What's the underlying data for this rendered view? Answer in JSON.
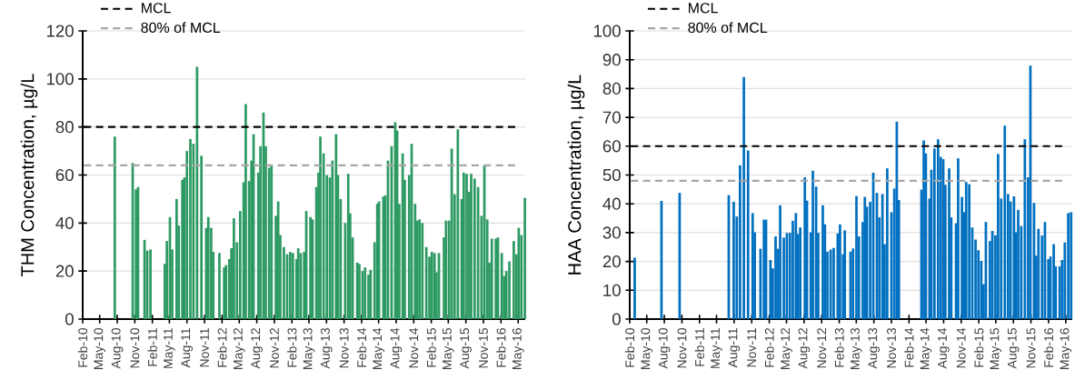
{
  "chart_data": [
    {
      "type": "bar",
      "ylabel": "THM Concentration, µg/L",
      "color": "#2e9a63",
      "grid": "y",
      "legend": "top left",
      "xlim": [
        "2010-02-01",
        "2016-06-07"
      ],
      "ylim": [
        0,
        120
      ],
      "yticks": [
        0,
        20,
        40,
        60,
        80,
        100,
        120
      ],
      "xticks": [
        {
          "value": "2010-02",
          "label": "Feb-10"
        },
        {
          "value": "2010-05",
          "label": "May-10"
        },
        {
          "value": "2010-08",
          "label": "Aug-10"
        },
        {
          "value": "2010-11",
          "label": "Nov-10"
        },
        {
          "value": "2011-02",
          "label": "Feb-11"
        },
        {
          "value": "2011-05",
          "label": "May-11"
        },
        {
          "value": "2011-08",
          "label": "Aug-11"
        },
        {
          "value": "2011-11",
          "label": "Nov-11"
        },
        {
          "value": "2012-02",
          "label": "Feb-12"
        },
        {
          "value": "2012-05",
          "label": "May-12"
        },
        {
          "value": "2012-08",
          "label": "Aug-12"
        },
        {
          "value": "2012-11",
          "label": "Nov-12"
        },
        {
          "value": "2013-02",
          "label": "Feb-13"
        },
        {
          "value": "2013-05",
          "label": "May-13"
        },
        {
          "value": "2013-08",
          "label": "Aug-13"
        },
        {
          "value": "2013-11",
          "label": "Nov-13"
        },
        {
          "value": "2014-02",
          "label": "Feb-14"
        },
        {
          "value": "2014-05",
          "label": "May-14"
        },
        {
          "value": "2014-08",
          "label": "Aug-14"
        },
        {
          "value": "2014-11",
          "label": "Nov-14"
        },
        {
          "value": "2015-02",
          "label": "Feb-15"
        },
        {
          "value": "2015-05",
          "label": "May-15"
        },
        {
          "value": "2015-08",
          "label": "Aug-15"
        },
        {
          "value": "2015-11",
          "label": "Nov-15"
        },
        {
          "value": "2016-02",
          "label": "Feb-16"
        },
        {
          "value": "2016-05",
          "label": "May-16"
        }
      ],
      "ref_lines": [
        {
          "axis": "y",
          "value": 80,
          "label": "MCL",
          "color": "#000000",
          "line_style": "dashed"
        },
        {
          "axis": "y",
          "value": 64,
          "label": "80% of MCL",
          "color": "#a6a6a6",
          "line_style": "dashed"
        }
      ],
      "x": [
        "2010-07-19",
        "2010-10-21",
        "2010-11-07",
        "2010-11-18",
        "2010-12-22",
        "2011-01-05",
        "2011-01-22",
        "2011-04-07",
        "2011-04-18",
        "2011-05-04",
        "2011-05-16",
        "2011-06-08",
        "2011-06-19",
        "2011-07-08",
        "2011-07-19",
        "2011-08-01",
        "2011-08-19",
        "2011-09-04",
        "2011-09-23",
        "2011-10-16",
        "2011-11-10",
        "2011-11-21",
        "2011-12-06",
        "2011-12-17",
        "2012-01-18",
        "2012-02-12",
        "2012-02-22",
        "2012-03-10",
        "2012-03-21",
        "2012-04-03",
        "2012-04-19",
        "2012-05-06",
        "2012-05-24",
        "2012-06-04",
        "2012-06-22",
        "2012-07-04",
        "2012-07-15",
        "2012-08-09",
        "2012-08-20",
        "2012-09-05",
        "2012-09-17",
        "2012-10-05",
        "2012-10-17",
        "2012-11-09",
        "2012-11-21",
        "2012-12-02",
        "2012-12-21",
        "2013-01-07",
        "2013-01-23",
        "2013-02-06",
        "2013-02-25",
        "2013-03-06",
        "2013-03-19",
        "2013-04-06",
        "2013-04-17",
        "2013-05-09",
        "2013-05-20",
        "2013-06-09",
        "2013-06-20",
        "2013-06-30",
        "2013-07-17",
        "2013-08-03",
        "2013-08-19",
        "2013-09-01",
        "2013-09-20",
        "2013-09-30",
        "2013-10-14",
        "2013-11-07",
        "2013-11-23",
        "2013-12-03",
        "2013-12-16",
        "2014-01-09",
        "2014-01-20",
        "2014-02-06",
        "2014-02-19",
        "2014-03-09",
        "2014-03-20",
        "2014-04-10",
        "2014-04-24",
        "2014-05-03",
        "2014-05-26",
        "2014-06-05",
        "2014-06-19",
        "2014-07-08",
        "2014-07-27",
        "2014-08-06",
        "2014-08-17",
        "2014-09-04",
        "2014-09-15",
        "2014-10-08",
        "2014-10-21",
        "2014-11-08",
        "2014-11-19",
        "2014-12-01",
        "2014-12-16",
        "2015-01-06",
        "2015-01-22",
        "2015-02-04",
        "2015-02-18",
        "2015-02-28",
        "2015-03-13",
        "2015-04-08",
        "2015-04-19",
        "2015-05-05",
        "2015-05-19",
        "2015-06-03",
        "2015-06-20",
        "2015-07-10",
        "2015-07-21",
        "2015-08-05",
        "2015-08-18",
        "2015-08-29",
        "2015-09-16",
        "2015-10-04",
        "2015-10-22",
        "2015-11-06",
        "2015-11-21",
        "2015-12-02",
        "2015-12-15",
        "2016-01-05",
        "2016-01-16",
        "2016-02-05",
        "2016-02-17",
        "2016-02-29",
        "2016-03-16",
        "2016-04-08",
        "2016-04-22",
        "2016-05-04",
        "2016-05-18",
        "2016-06-05"
      ],
      "values": [
        76,
        65,
        54,
        55,
        33,
        28.5,
        29,
        23,
        32.5,
        42.5,
        29,
        50,
        39,
        58,
        59,
        70,
        75,
        73,
        105,
        68,
        38,
        42.5,
        38,
        28,
        27.5,
        21.5,
        22.5,
        25,
        29.5,
        42,
        32,
        45,
        57,
        89.5,
        57.5,
        66,
        77,
        61,
        72,
        86,
        72,
        63,
        64,
        43,
        49,
        35,
        30,
        27,
        28,
        27.5,
        25,
        29.5,
        27.5,
        28,
        45,
        42.5,
        41.5,
        55,
        61,
        76,
        69,
        60,
        59,
        66,
        77,
        60,
        50,
        40,
        60.5,
        44,
        34,
        23.5,
        23,
        20,
        21.5,
        18.5,
        20.5,
        32,
        48,
        49,
        51,
        51.5,
        66,
        72,
        82,
        78.5,
        48,
        69,
        58,
        60,
        73,
        48,
        41,
        41.5,
        40,
        30,
        26,
        28,
        27.5,
        19.5,
        27.5,
        34,
        41,
        41,
        71,
        52,
        79,
        50,
        61,
        60.5,
        53,
        60.5,
        58.5,
        55,
        43,
        64,
        41.5,
        23.5,
        33.5,
        33.5,
        34,
        27.5,
        18,
        20,
        24,
        32.5,
        27,
        38,
        35,
        50.5
      ]
    },
    {
      "type": "bar",
      "ylabel": "HAA Concentration, µg/L",
      "color": "#0070c0",
      "grid": "y",
      "legend": "top left",
      "xlim": [
        "2010-02-01",
        "2016-06-04"
      ],
      "ylim": [
        0,
        100
      ],
      "yticks": [
        0,
        10,
        20,
        30,
        40,
        50,
        60,
        70,
        80,
        90,
        100
      ],
      "xticks": [
        {
          "value": "2010-02",
          "label": "Feb-10"
        },
        {
          "value": "2010-05",
          "label": "May-10"
        },
        {
          "value": "2010-08",
          "label": "Aug-10"
        },
        {
          "value": "2010-11",
          "label": "Nov-10"
        },
        {
          "value": "2011-02",
          "label": "Feb-11"
        },
        {
          "value": "2011-05",
          "label": "May-11"
        },
        {
          "value": "2011-08",
          "label": "Aug-11"
        },
        {
          "value": "2011-11",
          "label": "Nov-11"
        },
        {
          "value": "2012-02",
          "label": "Feb-12"
        },
        {
          "value": "2012-05",
          "label": "May-12"
        },
        {
          "value": "2012-08",
          "label": "Aug-12"
        },
        {
          "value": "2012-11",
          "label": "Nov-12"
        },
        {
          "value": "2013-02",
          "label": "Feb-13"
        },
        {
          "value": "2013-05",
          "label": "May-13"
        },
        {
          "value": "2013-08",
          "label": "Aug-13"
        },
        {
          "value": "2013-11",
          "label": "Nov-13"
        },
        {
          "value": "2014-02",
          "label": "Feb-14"
        },
        {
          "value": "2014-05",
          "label": "May-14"
        },
        {
          "value": "2014-08",
          "label": "Aug-14"
        },
        {
          "value": "2014-11",
          "label": "Nov-14"
        },
        {
          "value": "2015-02",
          "label": "Feb-15"
        },
        {
          "value": "2015-05",
          "label": "May-15"
        },
        {
          "value": "2015-08",
          "label": "Aug-15"
        },
        {
          "value": "2015-11",
          "label": "Nov-15"
        },
        {
          "value": "2016-02",
          "label": "Feb-16"
        },
        {
          "value": "2016-05",
          "label": "May-16"
        }
      ],
      "ref_lines": [
        {
          "axis": "y",
          "value": 60,
          "label": "MCL",
          "color": "#000000",
          "line_style": "dashed"
        },
        {
          "axis": "y",
          "value": 48,
          "label": "80% of MCL",
          "color": "#a6a6a6",
          "line_style": "dashed"
        }
      ],
      "x": [
        "2010-02-27",
        "2010-07-17",
        "2010-10-20",
        "2011-07-04",
        "2011-07-30",
        "2011-08-15",
        "2011-09-01",
        "2011-09-21",
        "2011-10-13",
        "2011-11-06",
        "2011-11-17",
        "2011-12-17",
        "2012-01-04",
        "2012-01-15",
        "2012-02-07",
        "2012-02-19",
        "2012-03-05",
        "2012-03-17",
        "2012-03-29",
        "2012-04-17",
        "2012-05-03",
        "2012-05-19",
        "2012-06-03",
        "2012-06-19",
        "2012-06-30",
        "2012-07-12",
        "2012-08-05",
        "2012-08-16",
        "2012-09-05",
        "2012-09-16",
        "2012-10-03",
        "2012-10-14",
        "2012-11-07",
        "2012-11-18",
        "2012-12-01",
        "2012-12-18",
        "2013-01-03",
        "2013-01-24",
        "2013-02-05",
        "2013-02-21",
        "2013-03-02",
        "2013-04-01",
        "2013-04-14",
        "2013-05-02",
        "2013-05-15",
        "2013-06-04",
        "2013-06-15",
        "2013-06-26",
        "2013-07-13",
        "2013-07-29",
        "2013-08-17",
        "2013-08-30",
        "2013-09-15",
        "2013-09-26",
        "2013-10-10",
        "2013-11-01",
        "2013-11-16",
        "2013-11-29",
        "2013-12-10",
        "2014-04-07",
        "2014-04-19",
        "2014-04-30",
        "2014-05-19",
        "2014-05-29",
        "2014-06-14",
        "2014-07-03",
        "2014-07-17",
        "2014-07-30",
        "2014-08-10",
        "2014-08-30",
        "2014-09-10",
        "2014-10-05",
        "2014-10-16",
        "2014-11-05",
        "2014-11-16",
        "2014-11-27",
        "2014-12-13",
        "2014-12-29",
        "2015-01-15",
        "2015-01-30",
        "2015-02-14",
        "2015-02-26",
        "2015-03-10",
        "2015-03-31",
        "2015-04-13",
        "2015-04-29",
        "2015-05-13",
        "2015-05-29",
        "2015-06-17",
        "2015-07-04",
        "2015-07-17",
        "2015-08-04",
        "2015-08-13",
        "2015-08-26",
        "2015-09-11",
        "2015-09-30",
        "2015-10-17",
        "2015-10-29",
        "2015-11-17",
        "2015-11-28",
        "2015-12-10",
        "2015-12-29",
        "2016-01-13",
        "2016-01-31",
        "2016-02-11",
        "2016-02-28",
        "2016-03-09",
        "2016-03-30",
        "2016-04-12",
        "2016-04-26",
        "2016-05-14",
        "2016-05-29"
      ],
      "values": [
        21.3,
        41,
        43.8,
        43,
        40.7,
        35.6,
        53.4,
        84,
        58.5,
        36.8,
        30.1,
        24.4,
        34.5,
        34.5,
        20.5,
        17.6,
        28.7,
        24.4,
        39.5,
        28.3,
        29.9,
        29.9,
        34.1,
        36.8,
        29.5,
        31.8,
        49.2,
        41.1,
        30.1,
        51.5,
        46,
        29.9,
        39.5,
        32.9,
        23.4,
        24.1,
        24.7,
        29.7,
        32.9,
        22.5,
        30.8,
        23.4,
        24.5,
        42.7,
        28.7,
        33.7,
        42.4,
        39,
        40.7,
        50.8,
        43.8,
        35.3,
        43.4,
        26,
        52.3,
        37.1,
        45.3,
        68.5,
        41.3,
        44.9,
        62,
        57.5,
        41.8,
        51.8,
        59.2,
        62.4,
        56.3,
        55.5,
        46.6,
        52.3,
        35.3,
        33.3,
        55.8,
        42.4,
        37.1,
        47.6,
        46.8,
        31.8,
        27.6,
        23.9,
        20.2,
        12.1,
        33.7,
        27.1,
        30.6,
        29.1,
        57.3,
        41.8,
        67.1,
        43.4,
        40.8,
        42.6,
        30.1,
        37.9,
        32.3,
        62.4,
        49.2,
        87.9,
        40.3,
        22,
        31.3,
        29,
        33.7,
        20.8,
        21.7,
        26,
        18.3,
        18.3,
        20.5,
        26.6,
        36.8,
        37.1
      ]
    }
  ]
}
